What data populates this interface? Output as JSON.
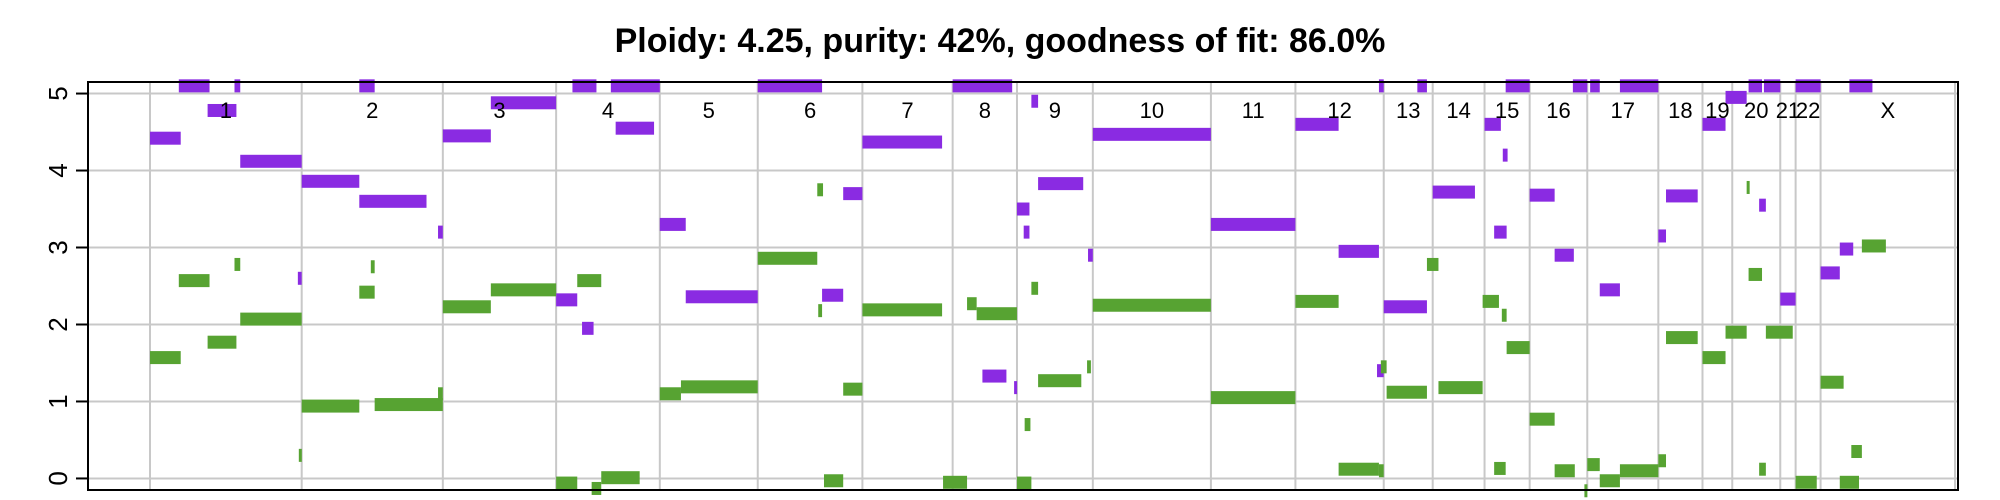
{
  "chart_data": {
    "type": "bar",
    "title": "Ploidy: 4.25, purity: 42%, goodness of fit: 86.0%",
    "xlabel": "",
    "ylabel": "",
    "ylim": [
      -0.15,
      5.15
    ],
    "yticks": [
      0,
      1,
      2,
      3,
      4,
      5
    ],
    "grid": true,
    "xlim": [
      0,
      1880
    ],
    "chromosomes": [
      {
        "label": "1",
        "start": 0,
        "end": 158
      },
      {
        "label": "2",
        "start": 158,
        "end": 305
      },
      {
        "label": "3",
        "start": 305,
        "end": 423
      },
      {
        "label": "4",
        "start": 423,
        "end": 531
      },
      {
        "label": "5",
        "start": 531,
        "end": 633
      },
      {
        "label": "6",
        "start": 633,
        "end": 742
      },
      {
        "label": "7",
        "start": 742,
        "end": 836
      },
      {
        "label": "8",
        "start": 836,
        "end": 903
      },
      {
        "label": "9",
        "start": 903,
        "end": 982
      },
      {
        "label": "10",
        "start": 982,
        "end": 1105
      },
      {
        "label": "11",
        "start": 1105,
        "end": 1193
      },
      {
        "label": "12",
        "start": 1193,
        "end": 1285
      },
      {
        "label": "13",
        "start": 1285,
        "end": 1336
      },
      {
        "label": "14",
        "start": 1336,
        "end": 1390
      },
      {
        "label": "15",
        "start": 1390,
        "end": 1437
      },
      {
        "label": "16",
        "start": 1437,
        "end": 1497
      },
      {
        "label": "17",
        "start": 1497,
        "end": 1571
      },
      {
        "label": "18",
        "start": 1571,
        "end": 1617
      },
      {
        "label": "19",
        "start": 1617,
        "end": 1648
      },
      {
        "label": "20",
        "start": 1648,
        "end": 1698
      },
      {
        "label": "21",
        "start": 1698,
        "end": 1714
      },
      {
        "label": "22",
        "start": 1714,
        "end": 1740
      },
      {
        "label": "X",
        "start": 1740,
        "end": 1880
      }
    ],
    "series": [
      {
        "color": "#8a2be2",
        "segments": [
          {
            "x0": 0,
            "x1": 32,
            "y": 4.42
          },
          {
            "x0": 30,
            "x1": 62,
            "y": 5.1
          },
          {
            "x0": 60,
            "x1": 90,
            "y": 4.78
          },
          {
            "x0": 88,
            "x1": 94,
            "y": 5.1
          },
          {
            "x0": 94,
            "x1": 158,
            "y": 4.12
          },
          {
            "x0": 154,
            "x1": 158,
            "y": 2.6
          },
          {
            "x0": 158,
            "x1": 218,
            "y": 3.86
          },
          {
            "x0": 218,
            "x1": 288,
            "y": 3.6
          },
          {
            "x0": 218,
            "x1": 234,
            "y": 5.1
          },
          {
            "x0": 300,
            "x1": 305,
            "y": 3.2
          },
          {
            "x0": 305,
            "x1": 355,
            "y": 4.45
          },
          {
            "x0": 355,
            "x1": 423,
            "y": 4.88
          },
          {
            "x0": 423,
            "x1": 445,
            "y": 2.32
          },
          {
            "x0": 440,
            "x1": 465,
            "y": 5.1
          },
          {
            "x0": 450,
            "x1": 462,
            "y": 1.95
          },
          {
            "x0": 480,
            "x1": 531,
            "y": 5.1
          },
          {
            "x0": 485,
            "x1": 525,
            "y": 4.55
          },
          {
            "x0": 531,
            "x1": 558,
            "y": 3.3
          },
          {
            "x0": 558,
            "x1": 633,
            "y": 2.36
          },
          {
            "x0": 633,
            "x1": 700,
            "y": 5.1
          },
          {
            "x0": 700,
            "x1": 722,
            "y": 2.38
          },
          {
            "x0": 722,
            "x1": 742,
            "y": 3.7
          },
          {
            "x0": 742,
            "x1": 825,
            "y": 4.37
          },
          {
            "x0": 836,
            "x1": 898,
            "y": 5.1
          },
          {
            "x0": 867,
            "x1": 892,
            "y": 1.33
          },
          {
            "x0": 900,
            "x1": 903,
            "y": 1.18
          },
          {
            "x0": 903,
            "x1": 916,
            "y": 3.5
          },
          {
            "x0": 910,
            "x1": 916,
            "y": 3.2
          },
          {
            "x0": 918,
            "x1": 925,
            "y": 4.9
          },
          {
            "x0": 925,
            "x1": 972,
            "y": 3.83
          },
          {
            "x0": 977,
            "x1": 982,
            "y": 2.9
          },
          {
            "x0": 982,
            "x1": 1105,
            "y": 4.47
          },
          {
            "x0": 1105,
            "x1": 1193,
            "y": 3.3
          },
          {
            "x0": 1193,
            "x1": 1238,
            "y": 4.6
          },
          {
            "x0": 1238,
            "x1": 1280,
            "y": 2.95
          },
          {
            "x0": 1278,
            "x1": 1285,
            "y": 1.4
          },
          {
            "x0": 1280,
            "x1": 1285,
            "y": 5.1
          },
          {
            "x0": 1285,
            "x1": 1330,
            "y": 2.23
          },
          {
            "x0": 1320,
            "x1": 1330,
            "y": 5.1
          },
          {
            "x0": 1336,
            "x1": 1380,
            "y": 3.72
          },
          {
            "x0": 1390,
            "x1": 1407,
            "y": 4.6
          },
          {
            "x0": 1400,
            "x1": 1413,
            "y": 3.2
          },
          {
            "x0": 1409,
            "x1": 1414,
            "y": 4.2
          },
          {
            "x0": 1412,
            "x1": 1437,
            "y": 5.1
          },
          {
            "x0": 1437,
            "x1": 1463,
            "y": 3.68
          },
          {
            "x0": 1463,
            "x1": 1483,
            "y": 2.9
          },
          {
            "x0": 1482,
            "x1": 1497,
            "y": 5.1
          },
          {
            "x0": 1500,
            "x1": 1510,
            "y": 5.1
          },
          {
            "x0": 1510,
            "x1": 1531,
            "y": 2.45
          },
          {
            "x0": 1531,
            "x1": 1571,
            "y": 5.1
          },
          {
            "x0": 1571,
            "x1": 1579,
            "y": 3.15
          },
          {
            "x0": 1579,
            "x1": 1612,
            "y": 3.67
          },
          {
            "x0": 1617,
            "x1": 1641,
            "y": 4.6
          },
          {
            "x0": 1641,
            "x1": 1663,
            "y": 4.95
          },
          {
            "x0": 1665,
            "x1": 1679,
            "y": 5.1
          },
          {
            "x0": 1676,
            "x1": 1683,
            "y": 3.55
          },
          {
            "x0": 1681,
            "x1": 1698,
            "y": 5.1
          },
          {
            "x0": 1698,
            "x1": 1714,
            "y": 2.33
          },
          {
            "x0": 1714,
            "x1": 1740,
            "y": 5.1
          },
          {
            "x0": 1740,
            "x1": 1760,
            "y": 2.67
          },
          {
            "x0": 1760,
            "x1": 1774,
            "y": 2.98
          },
          {
            "x0": 1770,
            "x1": 1794,
            "y": 5.1
          }
        ]
      },
      {
        "color": "#57a332",
        "segments": [
          {
            "x0": 0,
            "x1": 32,
            "y": 1.57
          },
          {
            "x0": 30,
            "x1": 62,
            "y": 2.57
          },
          {
            "x0": 60,
            "x1": 90,
            "y": 1.77
          },
          {
            "x0": 88,
            "x1": 94,
            "y": 2.78
          },
          {
            "x0": 94,
            "x1": 158,
            "y": 2.07
          },
          {
            "x0": 155,
            "x1": 158,
            "y": 0.3
          },
          {
            "x0": 158,
            "x1": 218,
            "y": 0.94
          },
          {
            "x0": 218,
            "x1": 234,
            "y": 2.42
          },
          {
            "x0": 230,
            "x1": 234,
            "y": 2.75
          },
          {
            "x0": 234,
            "x1": 305,
            "y": 0.96
          },
          {
            "x0": 300,
            "x1": 305,
            "y": 1.1
          },
          {
            "x0": 305,
            "x1": 355,
            "y": 2.23
          },
          {
            "x0": 355,
            "x1": 423,
            "y": 2.45
          },
          {
            "x0": 423,
            "x1": 445,
            "y": -0.06
          },
          {
            "x0": 445,
            "x1": 470,
            "y": 2.57
          },
          {
            "x0": 460,
            "x1": 470,
            "y": -0.13
          },
          {
            "x0": 470,
            "x1": 510,
            "y": 0.01
          },
          {
            "x0": 531,
            "x1": 553,
            "y": 1.1
          },
          {
            "x0": 553,
            "x1": 633,
            "y": 1.19
          },
          {
            "x0": 633,
            "x1": 695,
            "y": 2.86
          },
          {
            "x0": 695,
            "x1": 701,
            "y": 3.75
          },
          {
            "x0": 696,
            "x1": 700,
            "y": 2.18
          },
          {
            "x0": 702,
            "x1": 722,
            "y": -0.03
          },
          {
            "x0": 722,
            "x1": 742,
            "y": 1.16
          },
          {
            "x0": 742,
            "x1": 825,
            "y": 2.19
          },
          {
            "x0": 826,
            "x1": 851,
            "y": -0.05
          },
          {
            "x0": 851,
            "x1": 861,
            "y": 2.27
          },
          {
            "x0": 861,
            "x1": 903,
            "y": 2.14
          },
          {
            "x0": 903,
            "x1": 918,
            "y": -0.06
          },
          {
            "x0": 911,
            "x1": 917,
            "y": 0.7
          },
          {
            "x0": 918,
            "x1": 925,
            "y": 2.47
          },
          {
            "x0": 925,
            "x1": 970,
            "y": 1.27
          },
          {
            "x0": 976,
            "x1": 980,
            "y": 1.45
          },
          {
            "x0": 982,
            "x1": 1105,
            "y": 2.25
          },
          {
            "x0": 1105,
            "x1": 1193,
            "y": 1.05
          },
          {
            "x0": 1193,
            "x1": 1238,
            "y": 2.3
          },
          {
            "x0": 1238,
            "x1": 1280,
            "y": 0.12
          },
          {
            "x0": 1280,
            "x1": 1285,
            "y": 0.1
          },
          {
            "x0": 1282,
            "x1": 1288,
            "y": 1.45
          },
          {
            "x0": 1288,
            "x1": 1330,
            "y": 1.12
          },
          {
            "x0": 1330,
            "x1": 1342,
            "y": 2.78
          },
          {
            "x0": 1342,
            "x1": 1388,
            "y": 1.18
          },
          {
            "x0": 1388,
            "x1": 1405,
            "y": 2.3
          },
          {
            "x0": 1400,
            "x1": 1412,
            "y": 0.13
          },
          {
            "x0": 1408,
            "x1": 1413,
            "y": 2.12
          },
          {
            "x0": 1413,
            "x1": 1437,
            "y": 1.7
          },
          {
            "x0": 1437,
            "x1": 1463,
            "y": 0.77
          },
          {
            "x0": 1463,
            "x1": 1484,
            "y": 0.1
          },
          {
            "x0": 1494,
            "x1": 1497,
            "y": -0.16
          },
          {
            "x0": 1497,
            "x1": 1510,
            "y": 0.18
          },
          {
            "x0": 1510,
            "x1": 1531,
            "y": -0.03
          },
          {
            "x0": 1531,
            "x1": 1571,
            "y": 0.1
          },
          {
            "x0": 1571,
            "x1": 1579,
            "y": 0.23
          },
          {
            "x0": 1579,
            "x1": 1612,
            "y": 1.83
          },
          {
            "x0": 1617,
            "x1": 1641,
            "y": 1.57
          },
          {
            "x0": 1641,
            "x1": 1663,
            "y": 1.9
          },
          {
            "x0": 1663,
            "x1": 1665,
            "y": 3.78
          },
          {
            "x0": 1665,
            "x1": 1679,
            "y": 2.65
          },
          {
            "x0": 1676,
            "x1": 1683,
            "y": 0.12
          },
          {
            "x0": 1683,
            "x1": 1711,
            "y": 1.9
          },
          {
            "x0": 1714,
            "x1": 1736,
            "y": -0.05
          },
          {
            "x0": 1740,
            "x1": 1764,
            "y": 1.25
          },
          {
            "x0": 1760,
            "x1": 1780,
            "y": -0.05
          },
          {
            "x0": 1772,
            "x1": 1783,
            "y": 0.35
          },
          {
            "x0": 1783,
            "x1": 1808,
            "y": 3.02
          }
        ]
      }
    ]
  }
}
